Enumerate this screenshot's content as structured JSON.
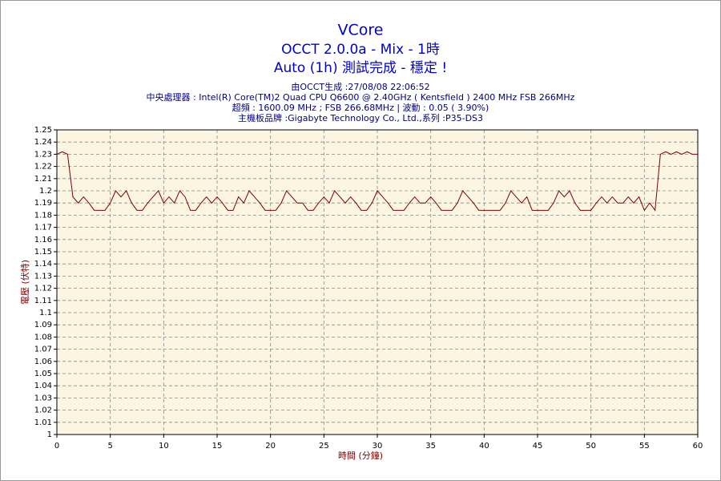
{
  "chart_data": {
    "type": "line",
    "title": "VCore",
    "subtitles": [
      "OCCT 2.0.0a - Mix - 1時",
      "Auto (1h) 測試完成 - 穩定 !"
    ],
    "annotations": [
      "由OCCT生成 :27/08/08 22:06:52",
      "中央處理器 : Intel(R) Core(TM)2 Quad CPU Q6600 @ 2.40GHz ( Kentsfield ) 2400 MHz FSB 266MHz",
      "超頻 : 1600.09 MHz ; FSB 266.68MHz | 波動 : 0.05 ( 3.90%)",
      "主機板品牌 :Gigabyte Technology Co., Ltd.,系列 :P35-DS3"
    ],
    "x_label": "時間 (分鐘)",
    "y_label": "電壓 (伏特)",
    "color": "#800000",
    "grid": true,
    "xlim": [
      0,
      60
    ],
    "xticks": [
      0,
      5,
      10,
      15,
      20,
      25,
      30,
      35,
      40,
      45,
      50,
      55,
      60
    ],
    "ylim": [
      1,
      1.25
    ],
    "yticks": [
      1,
      1.01,
      1.02,
      1.03,
      1.04,
      1.05,
      1.06,
      1.07,
      1.08,
      1.09,
      1.1,
      1.11,
      1.12,
      1.13,
      1.14,
      1.15,
      1.16,
      1.17,
      1.18,
      1.19,
      1.2,
      1.21,
      1.22,
      1.23,
      1.24,
      1.25
    ],
    "x": [
      0,
      0.5,
      1,
      1.5,
      2,
      2.5,
      3,
      3.5,
      4,
      4.5,
      5,
      5.5,
      6,
      6.5,
      7,
      7.5,
      8,
      8.5,
      9,
      9.5,
      10,
      10.5,
      11,
      11.5,
      12,
      12.5,
      13,
      13.5,
      14,
      14.5,
      15,
      15.5,
      16,
      16.5,
      17,
      17.5,
      18,
      18.5,
      19,
      19.5,
      20,
      20.5,
      21,
      21.5,
      22,
      22.5,
      23,
      23.5,
      24,
      24.5,
      25,
      25.5,
      26,
      26.5,
      27,
      27.5,
      28,
      28.5,
      29,
      29.5,
      30,
      30.5,
      31,
      31.5,
      32,
      32.5,
      33,
      33.5,
      34,
      34.5,
      35,
      35.5,
      36,
      36.5,
      37,
      37.5,
      38,
      38.5,
      39,
      39.5,
      40,
      40.5,
      41,
      41.5,
      42,
      42.5,
      43,
      43.5,
      44,
      44.5,
      45,
      45.5,
      46,
      46.5,
      47,
      47.5,
      48,
      48.5,
      49,
      49.5,
      50,
      50.5,
      51,
      51.5,
      52,
      52.5,
      53,
      53.5,
      54,
      54.5,
      55,
      55.5,
      56,
      56.5,
      57,
      57.5,
      58,
      58.5,
      59,
      59.5,
      60
    ],
    "values": [
      1.23,
      1.232,
      1.23,
      1.195,
      1.19,
      1.195,
      1.19,
      1.184,
      1.184,
      1.184,
      1.19,
      1.2,
      1.195,
      1.2,
      1.19,
      1.184,
      1.184,
      1.19,
      1.195,
      1.2,
      1.19,
      1.195,
      1.19,
      1.2,
      1.195,
      1.184,
      1.184,
      1.19,
      1.195,
      1.19,
      1.195,
      1.19,
      1.184,
      1.184,
      1.195,
      1.19,
      1.2,
      1.195,
      1.19,
      1.184,
      1.184,
      1.184,
      1.19,
      1.2,
      1.195,
      1.19,
      1.19,
      1.184,
      1.184,
      1.19,
      1.195,
      1.19,
      1.2,
      1.195,
      1.19,
      1.195,
      1.19,
      1.184,
      1.184,
      1.19,
      1.2,
      1.195,
      1.19,
      1.184,
      1.184,
      1.184,
      1.19,
      1.195,
      1.19,
      1.19,
      1.195,
      1.19,
      1.184,
      1.184,
      1.184,
      1.19,
      1.2,
      1.195,
      1.19,
      1.184,
      1.184,
      1.184,
      1.184,
      1.184,
      1.19,
      1.2,
      1.195,
      1.19,
      1.195,
      1.184,
      1.184,
      1.184,
      1.184,
      1.19,
      1.2,
      1.195,
      1.2,
      1.19,
      1.184,
      1.184,
      1.184,
      1.19,
      1.195,
      1.19,
      1.195,
      1.19,
      1.19,
      1.195,
      1.19,
      1.195,
      1.184,
      1.19,
      1.184,
      1.23,
      1.232,
      1.23,
      1.232,
      1.23,
      1.232,
      1.23,
      1.23
    ]
  }
}
